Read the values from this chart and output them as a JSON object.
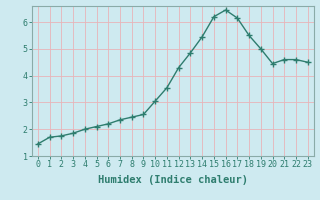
{
  "x": [
    0,
    1,
    2,
    3,
    4,
    5,
    6,
    7,
    8,
    9,
    10,
    11,
    12,
    13,
    14,
    15,
    16,
    17,
    18,
    19,
    20,
    21,
    22,
    23
  ],
  "y": [
    1.45,
    1.7,
    1.75,
    1.85,
    2.0,
    2.1,
    2.2,
    2.35,
    2.45,
    2.55,
    3.05,
    3.55,
    4.3,
    4.85,
    5.45,
    6.2,
    6.45,
    6.15,
    5.5,
    5.0,
    4.45,
    4.6,
    4.6,
    4.5
  ],
  "line_color": "#2e7d6e",
  "marker": "+",
  "marker_size": 4,
  "bg_color": "#ceeaf0",
  "grid_color": "#e8b4b8",
  "xlabel": "Humidex (Indice chaleur)",
  "ylim_min": 1,
  "ylim_max": 6.6,
  "xlim_min": -0.5,
  "xlim_max": 23.5,
  "yticks": [
    1,
    2,
    3,
    4,
    5,
    6
  ],
  "xticks": [
    0,
    1,
    2,
    3,
    4,
    5,
    6,
    7,
    8,
    9,
    10,
    11,
    12,
    13,
    14,
    15,
    16,
    17,
    18,
    19,
    20,
    21,
    22,
    23
  ],
  "tick_fontsize": 6,
  "xlabel_fontsize": 7.5,
  "tick_color": "#2e7d6e",
  "spine_color": "#8aaba8",
  "linewidth": 1.0,
  "marker_linewidth": 1.0
}
